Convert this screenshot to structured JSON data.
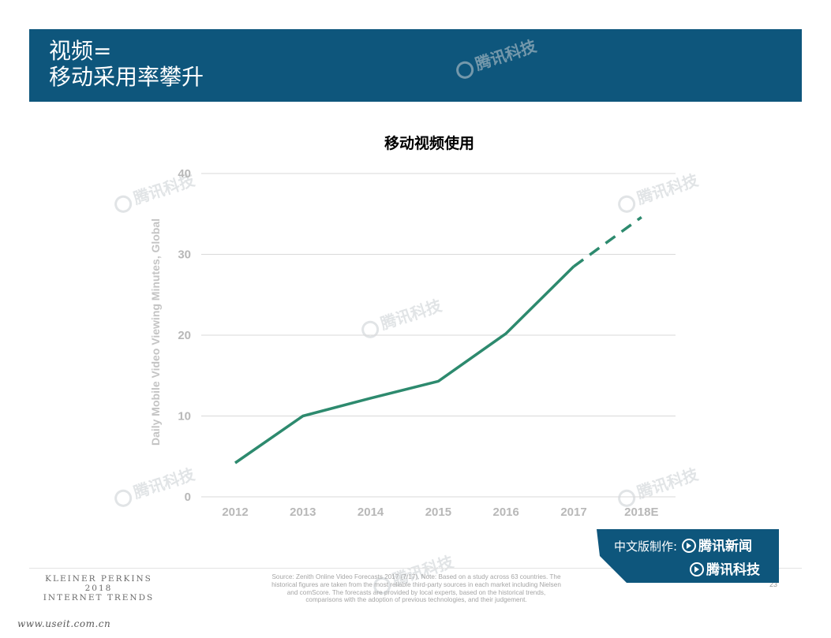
{
  "header": {
    "title_line1": "视频=",
    "title_line2": "移动采用率攀升",
    "bar_color": "#0e567c"
  },
  "chart_data": {
    "type": "line",
    "title": "移动视频使用",
    "ylabel": "Daily Mobile Video Viewing Minutes, Global",
    "xlabel": "",
    "categories": [
      "2012",
      "2013",
      "2014",
      "2015",
      "2016",
      "2017",
      "2018E"
    ],
    "ylim": [
      0,
      40
    ],
    "yticks": [
      "0",
      "10",
      "20",
      "30",
      "40"
    ],
    "series": [
      {
        "name": "",
        "segments": [
          {
            "style": "solid",
            "x": [
              2012,
              2013,
              2014,
              2015,
              2016,
              2017
            ],
            "y": [
              4.2,
              10.0,
              12.2,
              14.3,
              20.2,
              28.5
            ]
          },
          {
            "style": "dashed",
            "x": [
              2017,
              2018
            ],
            "y": [
              28.5,
              34.6
            ]
          }
        ]
      }
    ],
    "line_color": "#2d8a6e",
    "grid": true,
    "legend": "none"
  },
  "watermarks": {
    "text": "腾讯科技"
  },
  "footer": {
    "logo_line1": "KLEINER PERKINS",
    "logo_line2": "2018",
    "logo_line3": "INTERNET TRENDS",
    "source_line1": "Source: Zenith Online Video Forecasts 2017 (7/17). Note: Based on a study across 63 countries. The",
    "source_line2": "historical figures are taken from the most reliable third-party sources in each market including Nielsen",
    "source_line3": "and comScore. The forecasts are provided by local experts, based on the historical trends,",
    "source_line4": "comparisons with the adoption of previous technologies, and their judgement.",
    "page_number": "23",
    "site_url": "www.useit.com.cn"
  },
  "credit": {
    "prefix": "中文版制作:",
    "brand1": "腾讯新闻",
    "brand2": "腾讯科技",
    "bg_color": "#0e567c"
  }
}
